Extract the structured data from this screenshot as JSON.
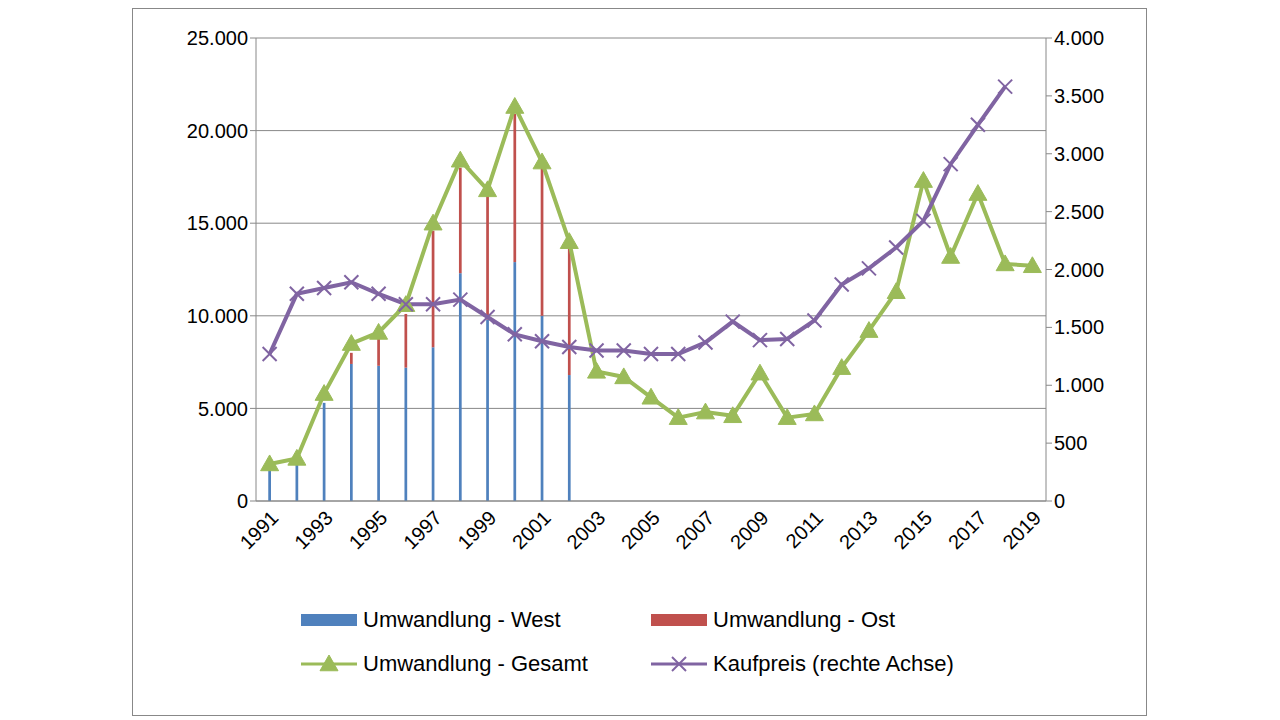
{
  "chart_data": {
    "type": "bar",
    "stacked": true,
    "grid": true,
    "legend": "bottom",
    "categories": [
      "1991",
      null,
      "1993",
      null,
      "1995",
      null,
      "1997",
      null,
      "1999",
      null,
      "2001",
      null,
      "2003",
      null,
      "2005",
      null,
      "2007",
      null,
      "2009",
      null,
      "2011",
      null,
      "2013",
      null,
      "2015",
      null,
      "2017",
      null,
      "2019"
    ],
    "ylim": [
      0,
      25000
    ],
    "yticks": [
      0,
      {
        "value": 5000,
        "label": "5.000"
      },
      {
        "value": 10000,
        "label": "10.000"
      },
      {
        "value": 15000,
        "label": "15.000"
      },
      {
        "value": 20000,
        "label": "20.000"
      },
      {
        "value": 25000,
        "label": "25.000"
      }
    ],
    "y2lim": [
      0,
      4000
    ],
    "y2ticks": [
      0,
      500,
      {
        "value": 1000,
        "label": "1.000"
      },
      {
        "value": 1500,
        "label": "1.500"
      },
      {
        "value": 2000,
        "label": "2.000"
      },
      {
        "value": 2500,
        "label": "2.500"
      },
      {
        "value": 3000,
        "label": "3.000"
      },
      {
        "value": 3500,
        "label": "3.500"
      },
      {
        "value": 4000,
        "label": "4.000"
      }
    ],
    "series": [
      {
        "name": "Umwandlung - West",
        "type": "bar",
        "color": "#4f81bd",
        "values": [
          1800,
          2000,
          5300,
          7400,
          7300,
          7200,
          8300,
          12300,
          9800,
          12900,
          10000,
          6800,
          null,
          null,
          null,
          null,
          null,
          null,
          null,
          null,
          null,
          null,
          null,
          null,
          null,
          null,
          null,
          null,
          null
        ]
      },
      {
        "name": "Umwandlung - Ost",
        "type": "bar",
        "color": "#c0504d",
        "values": [
          0,
          0,
          0,
          600,
          1600,
          2900,
          6300,
          5700,
          6700,
          8000,
          8000,
          6900,
          null,
          null,
          null,
          null,
          null,
          null,
          null,
          null,
          null,
          null,
          null,
          null,
          null,
          null,
          null,
          null,
          null
        ]
      },
      {
        "name": "Umwandlung - Gesamt",
        "type": "line",
        "color": "#9bbb59",
        "marker": "triangle",
        "values": [
          2000,
          2300,
          5800,
          8500,
          9100,
          10600,
          15000,
          18400,
          16800,
          21300,
          18300,
          14000,
          7000,
          6700,
          5600,
          4500,
          4800,
          4600,
          6900,
          4500,
          4700,
          7200,
          9200,
          11300,
          17300,
          13200,
          16600,
          12800,
          12700
        ]
      },
      {
        "name": "Kaufpreis (rechte Achse)",
        "type": "line",
        "axis": "y2",
        "color": "#8064a2",
        "marker": "x",
        "values": [
          1270,
          1790,
          1840,
          1890,
          1790,
          1700,
          1700,
          1740,
          1590,
          1440,
          1380,
          1330,
          1300,
          1300,
          1270,
          1270,
          1370,
          1550,
          1390,
          1400,
          1560,
          1870,
          2010,
          2190,
          2420,
          2910,
          3250,
          3580,
          null
        ]
      }
    ]
  }
}
